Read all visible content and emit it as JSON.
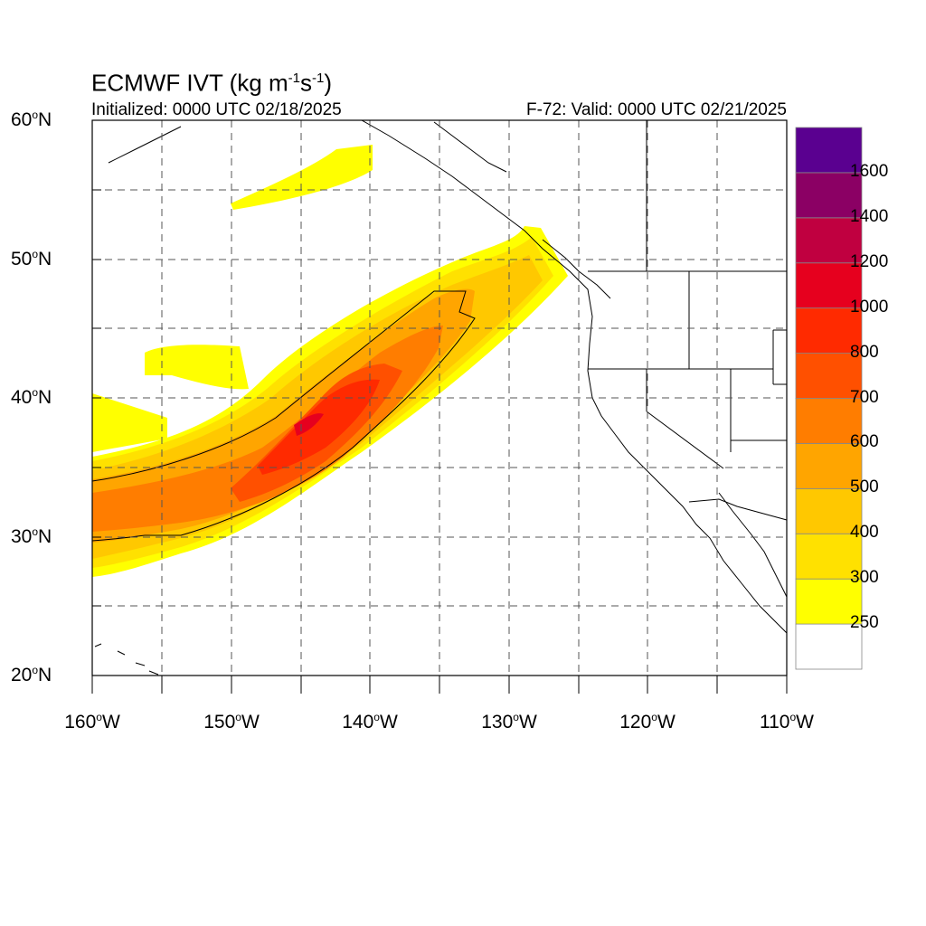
{
  "title": {
    "prefix": "ECMWF IVT (kg m",
    "sup1": "-1",
    "mid": "s",
    "sup2": "-1",
    "suffix": ")"
  },
  "initialized": "Initialized: 0000 UTC 02/18/2025",
  "valid": "F-72: Valid: 0000 UTC 02/21/2025",
  "lat_labels": [
    {
      "value": "60",
      "deg": "o",
      "hemi": "N"
    },
    {
      "value": "50",
      "deg": "o",
      "hemi": "N"
    },
    {
      "value": "40",
      "deg": "o",
      "hemi": "N"
    },
    {
      "value": "30",
      "deg": "o",
      "hemi": "N"
    },
    {
      "value": "20",
      "deg": "o",
      "hemi": "N"
    }
  ],
  "lon_labels": [
    {
      "value": "160",
      "deg": "o",
      "hemi": "W"
    },
    {
      "value": "150",
      "deg": "o",
      "hemi": "W"
    },
    {
      "value": "140",
      "deg": "o",
      "hemi": "W"
    },
    {
      "value": "130",
      "deg": "o",
      "hemi": "W"
    },
    {
      "value": "120",
      "deg": "o",
      "hemi": "W"
    },
    {
      "value": "110",
      "deg": "o",
      "hemi": "W"
    }
  ],
  "map_extent": {
    "lon_min": -160,
    "lon_max": -110,
    "lat_min": 20,
    "lat_max": 60
  },
  "colorbar": {
    "levels": [
      "250",
      "300",
      "400",
      "500",
      "600",
      "700",
      "800",
      "1000",
      "1200",
      "1400",
      "1600"
    ],
    "colors": [
      "#ffffff",
      "#ffff00",
      "#ffe100",
      "#ffc800",
      "#ffa500",
      "#ff7d00",
      "#ff5000",
      "#ff2a00",
      "#e6001e",
      "#c00040",
      "#8b0064",
      "#5a0090"
    ]
  }
}
